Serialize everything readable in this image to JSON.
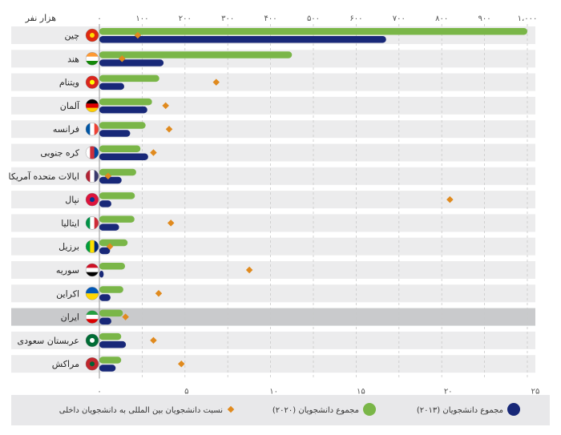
{
  "chart_data": {
    "type": "bar",
    "title": "",
    "top_axis_unit": "هزار نفر",
    "top_axis_ticks": [
      "۰",
      "۱۰۰",
      "۲۰۰",
      "۳۰۰",
      "۴۰۰",
      "۵۰۰",
      "۶۰۰",
      "۷۰۰",
      "۸۰۰",
      "۹۰۰",
      "۱،۰۰۰"
    ],
    "top_axis_range": [
      0,
      1000
    ],
    "bottom_axis_ticks": [
      "۰",
      "۵",
      "۱۰",
      "۱۵",
      "۲۰",
      "۲۵"
    ],
    "bottom_axis_range": [
      0,
      25
    ],
    "categories": [
      "چین",
      "هند",
      "ویتنام",
      "آلمان",
      "فرانسه",
      "کره جنوبی",
      "ایالات متحده آمریکا",
      "نپال",
      "ایتالیا",
      "برزیل",
      "سوریه",
      "اکراین",
      "ایران",
      "عربستان سعودی",
      "مراکش"
    ],
    "highlight": "ایران",
    "series": [
      {
        "name": "مجموع دانشجویان (۲۰۲۰)",
        "color": "#7ab648",
        "axis": "top",
        "values": [
          1000,
          450,
          140,
          123,
          108,
          96,
          86,
          83,
          82,
          66,
          60,
          56,
          55,
          51,
          51
        ]
      },
      {
        "name": "مجموع دانشجویان (۲۰۱۳)",
        "color": "#182878",
        "axis": "top",
        "values": [
          670,
          150,
          58,
          112,
          72,
          114,
          52,
          28,
          46,
          25,
          10,
          26,
          28,
          62,
          38
        ]
      },
      {
        "name": "نسبت دانشجویان بین المللی به دانشجویان داخلی",
        "color": "#e08a1e",
        "axis": "bottom",
        "values": [
          2.2,
          1.3,
          6.7,
          3.8,
          4.0,
          3.1,
          0.5,
          20.1,
          4.1,
          0.6,
          8.6,
          3.4,
          1.5,
          3.1,
          4.7
        ]
      }
    ]
  },
  "legend": {
    "ratio_label": "نسبت دانشجویان بین المللی به دانشجویان داخلی",
    "s2020_label": "مجموع دانشجویان (۲۰۲۰)",
    "s2013_label": "مجموع دانشجویان (۲۰۱۳)"
  },
  "flags": [
    {
      "name": "china-flag-icon",
      "colors": [
        "#de2910",
        "#ffde00"
      ]
    },
    {
      "name": "india-flag-icon",
      "colors": [
        "#ff9933",
        "#ffffff",
        "#138808"
      ]
    },
    {
      "name": "vietnam-flag-icon",
      "colors": [
        "#da251d",
        "#ffff00"
      ]
    },
    {
      "name": "germany-flag-icon",
      "colors": [
        "#000000",
        "#dd0000",
        "#ffce00"
      ]
    },
    {
      "name": "france-flag-icon",
      "colors": [
        "#0055a4",
        "#ffffff",
        "#ef4135"
      ]
    },
    {
      "name": "south-korea-flag-icon",
      "colors": [
        "#ffffff",
        "#cd2e3a",
        "#0047a0"
      ]
    },
    {
      "name": "usa-flag-icon",
      "colors": [
        "#b22234",
        "#ffffff",
        "#3c3b6e"
      ]
    },
    {
      "name": "nepal-flag-icon",
      "colors": [
        "#dc143c",
        "#003893"
      ]
    },
    {
      "name": "italy-flag-icon",
      "colors": [
        "#009246",
        "#ffffff",
        "#ce2b37"
      ]
    },
    {
      "name": "brazil-flag-icon",
      "colors": [
        "#009c3b",
        "#ffdf00",
        "#002776"
      ]
    },
    {
      "name": "syria-flag-icon",
      "colors": [
        "#ce1126",
        "#ffffff",
        "#000000"
      ]
    },
    {
      "name": "ukraine-flag-icon",
      "colors": [
        "#0057b7",
        "#ffd700"
      ]
    },
    {
      "name": "iran-flag-icon",
      "colors": [
        "#239f40",
        "#ffffff",
        "#da0000"
      ]
    },
    {
      "name": "saudi-arabia-flag-icon",
      "colors": [
        "#006c35",
        "#ffffff"
      ]
    },
    {
      "name": "morocco-flag-icon",
      "colors": [
        "#c1272d",
        "#006233"
      ]
    }
  ]
}
